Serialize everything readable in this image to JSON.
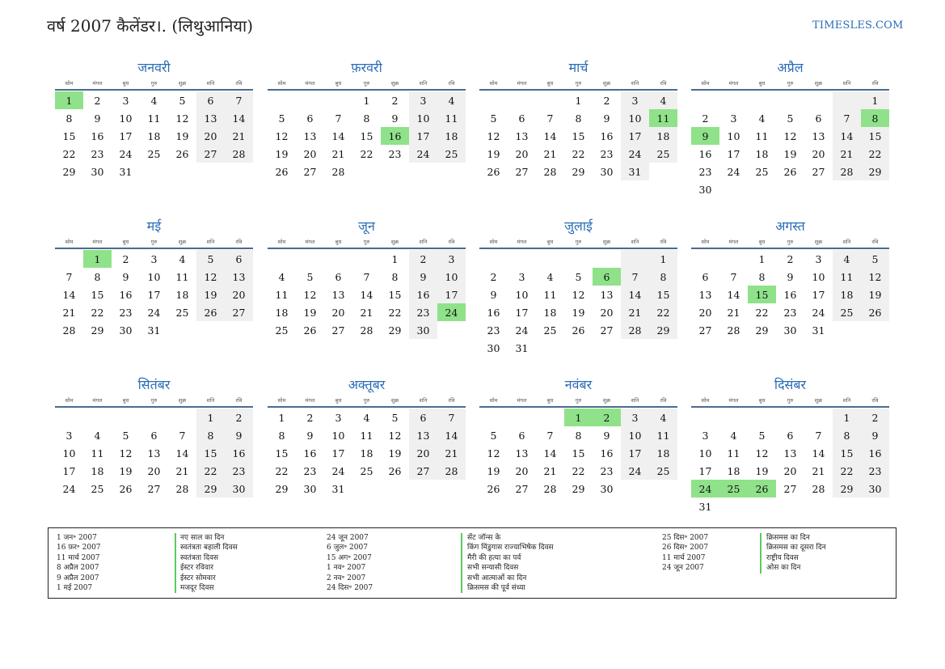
{
  "header": {
    "title": "वर्ष 2007 कैलेंडर।. (लिथुआनिया)",
    "site": "TIMESLES.COM"
  },
  "weekdays": [
    "सोम",
    "मंगल",
    "बुध",
    "गुरु",
    "शुक्र",
    "शनि",
    "रवि"
  ],
  "months": [
    {
      "name": "जनवरी",
      "start": 0,
      "days": 31,
      "holidays": [
        1
      ]
    },
    {
      "name": "फ़रवरी",
      "start": 3,
      "days": 28,
      "holidays": [
        16
      ]
    },
    {
      "name": "मार्च",
      "start": 3,
      "days": 31,
      "holidays": [
        11
      ]
    },
    {
      "name": "अप्रैल",
      "start": 6,
      "days": 30,
      "holidays": [
        8,
        9
      ]
    },
    {
      "name": "मई",
      "start": 1,
      "days": 31,
      "holidays": [
        1
      ]
    },
    {
      "name": "जून",
      "start": 4,
      "days": 30,
      "holidays": [
        24
      ]
    },
    {
      "name": "जुलाई",
      "start": 6,
      "days": 31,
      "holidays": [
        6
      ]
    },
    {
      "name": "अगस्त",
      "start": 2,
      "days": 31,
      "holidays": [
        15
      ]
    },
    {
      "name": "सितंबर",
      "start": 5,
      "days": 30,
      "holidays": []
    },
    {
      "name": "अक्तूबर",
      "start": 0,
      "days": 31,
      "holidays": []
    },
    {
      "name": "नवंबर",
      "start": 3,
      "days": 30,
      "holidays": [
        1,
        2
      ]
    },
    {
      "name": "दिसंबर",
      "start": 5,
      "days": 31,
      "holidays": [
        24,
        25,
        26
      ]
    }
  ],
  "holiday_list": [
    {
      "dates": [
        "1 जन॰ 2007",
        "16 फ़र॰ 2007",
        "11 मार्च 2007",
        "8 अप्रैल 2007",
        "9 अप्रैल 2007",
        "1 मई 2007"
      ],
      "names": [
        "नए साल का दिन",
        "स्वतंत्रता बहाली दिवस",
        "स्वतंत्रता दिवस",
        "ईस्टर रविवार",
        "ईस्टर सोमवार",
        "मजदूर दिवस"
      ]
    },
    {
      "dates": [
        "24 जून 2007",
        "6 जुल॰ 2007",
        "15 अग॰ 2007",
        "1 नव॰ 2007",
        "2 नव॰ 2007",
        "24 दिस॰ 2007"
      ],
      "names": [
        "सेंट जॉन्स के",
        "किंग मिंडुगास राज्याभिषेक दिवस",
        "मैरी की हत्या का पर्व",
        "सभी सन्यासी दिवस",
        "सभी आत्माओं का दिन",
        "क्रिसमस की पूर्व संध्या"
      ]
    },
    {
      "dates": [
        "25 दिस॰ 2007",
        "26 दिस॰ 2007",
        "11 मार्च 2007",
        "24 जून 2007"
      ],
      "names": [
        "क्रिसमस का दिन",
        "क्रिसमस का दूसरा दिन",
        "राष्ट्रीय दिवस",
        "ओस का दिन"
      ]
    }
  ]
}
